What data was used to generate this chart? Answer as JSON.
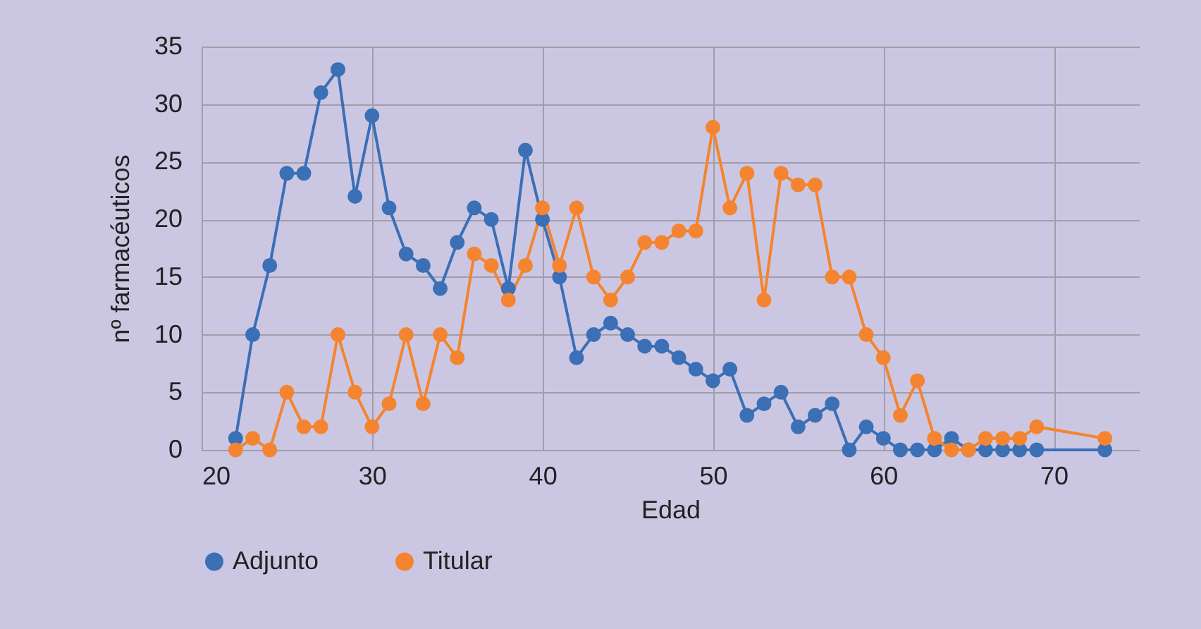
{
  "chart_data": {
    "type": "line",
    "xlabel": "Edad",
    "ylabel": "nº farmacéuticos",
    "x": [
      22,
      23,
      24,
      25,
      26,
      27,
      28,
      29,
      30,
      31,
      32,
      33,
      34,
      35,
      36,
      37,
      38,
      39,
      40,
      41,
      42,
      43,
      44,
      45,
      46,
      47,
      48,
      49,
      50,
      51,
      52,
      53,
      54,
      55,
      56,
      57,
      58,
      59,
      60,
      61,
      62,
      63,
      64,
      65,
      66,
      67,
      68,
      69,
      73
    ],
    "series": [
      {
        "name": "Adjunto",
        "color": "#3b6fb6",
        "values": [
          1,
          10,
          16,
          24,
          24,
          31,
          33,
          22,
          29,
          21,
          17,
          16,
          14,
          18,
          21,
          20,
          14,
          26,
          20,
          15,
          8,
          10,
          11,
          10,
          9,
          9,
          8,
          7,
          6,
          7,
          3,
          4,
          5,
          2,
          3,
          4,
          0,
          2,
          1,
          0,
          0,
          0,
          1,
          0,
          0,
          0,
          0,
          0,
          0
        ]
      },
      {
        "name": "Titular",
        "color": "#f4842f",
        "values": [
          0,
          1,
          0,
          5,
          2,
          2,
          10,
          5,
          2,
          4,
          10,
          4,
          10,
          8,
          17,
          16,
          13,
          16,
          21,
          16,
          21,
          15,
          13,
          15,
          18,
          18,
          19,
          19,
          28,
          21,
          24,
          13,
          24,
          23,
          23,
          15,
          15,
          10,
          8,
          3,
          6,
          1,
          0,
          0,
          1,
          1,
          1,
          2,
          1
        ]
      }
    ],
    "xlim": [
      20,
      75
    ],
    "xticks": [
      20,
      30,
      40,
      50,
      60,
      70
    ],
    "ylim": [
      0,
      35
    ],
    "yticks": [
      0,
      5,
      10,
      15,
      20,
      25,
      30,
      35
    ],
    "grid": true,
    "legend": "bottom",
    "marker": "circle",
    "line_style": "solid"
  }
}
